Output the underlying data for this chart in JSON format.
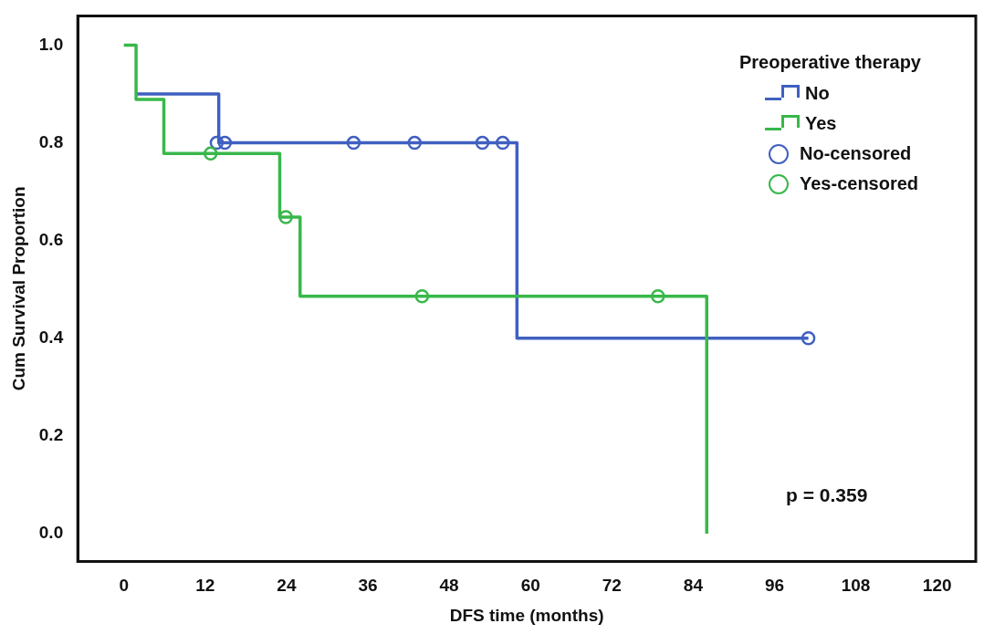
{
  "chart_data": {
    "type": "step",
    "xlabel": "DFS time (months)",
    "ylabel": "Cum Survival Proportion",
    "legend_title": "Preoperative therapy",
    "legend": "top right",
    "xlim": [
      -6.8,
      125.7
    ],
    "xticks": [
      0,
      12,
      24,
      36,
      48,
      60,
      72,
      84,
      96,
      108,
      120
    ],
    "ylim": [
      -0.057,
      1.06
    ],
    "yticks": [
      {
        "value": 0,
        "label": "0.0"
      },
      0.2,
      0.4,
      0.6,
      0.8,
      {
        "value": 1,
        "label": "1.0"
      }
    ],
    "series": [
      {
        "name": "No",
        "marker": "none",
        "color": "#4060c0",
        "x": [
          1.8,
          14,
          58,
          101
        ],
        "values": [
          0.9,
          0.8,
          0.4,
          0.4
        ]
      },
      {
        "name": "Yes",
        "marker": "none",
        "color": "#38b84a",
        "x": [
          0,
          1.8,
          5.9,
          23,
          26,
          86
        ],
        "values": [
          1,
          0.889,
          0.778,
          0.648,
          0.486,
          0
        ]
      },
      {
        "name": "No-censored",
        "type": "scatter",
        "marker": "circle",
        "color": "#4060c0",
        "x": [
          13.7,
          14.9,
          33.9,
          42.9,
          52.9,
          55.9,
          101
        ],
        "values": [
          0.8,
          0.8,
          0.8,
          0.8,
          0.8,
          0.8,
          0.4
        ]
      },
      {
        "name": "Yes-censored",
        "type": "scatter",
        "marker": "circle",
        "color": "#38b84a",
        "x": [
          12.8,
          23.9,
          44,
          78.8
        ],
        "values": [
          0.778,
          0.648,
          0.486,
          0.486
        ]
      }
    ],
    "annotations": [
      "p = 0.359"
    ]
  }
}
